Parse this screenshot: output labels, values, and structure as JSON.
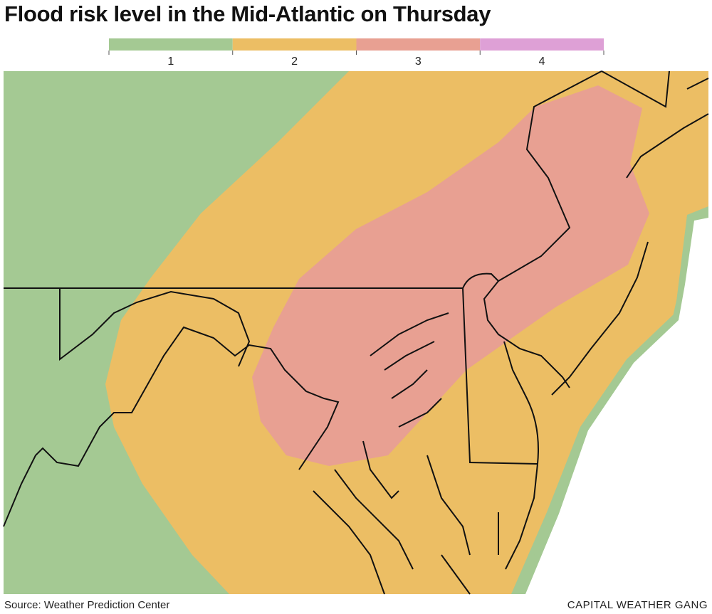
{
  "title": "Flood risk level in the Mid-Atlantic on Thursday",
  "legend": [
    {
      "label": "1",
      "color": "#a4c993"
    },
    {
      "label": "2",
      "color": "#ecbe64"
    },
    {
      "label": "3",
      "color": "#e8a092"
    },
    {
      "label": "4",
      "color": "#dea0d6"
    }
  ],
  "source": "Source: Weather Prediction Center",
  "credit": "CAPITAL WEATHER GANG"
}
